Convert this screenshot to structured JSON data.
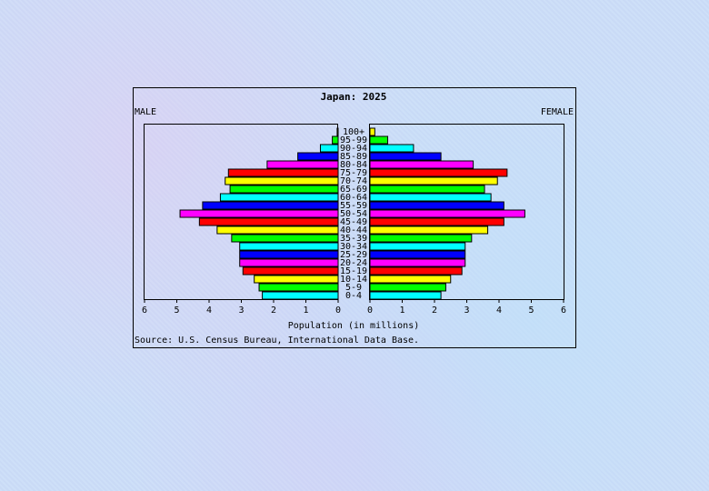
{
  "chart_data": {
    "type": "bar",
    "title": "Japan: 2025",
    "left_label": "MALE",
    "right_label": "FEMALE",
    "xlabel": "Population (in millions)",
    "source": "Source: U.S. Census Bureau, International Data Base.",
    "xlim": [
      0,
      6
    ],
    "tick_labels": [
      "6",
      "5",
      "4",
      "3",
      "2",
      "1",
      "0"
    ],
    "tick_labels_right": [
      "0",
      "1",
      "2",
      "3",
      "4",
      "5",
      "6"
    ],
    "categories": [
      "0-4",
      "5-9",
      "10-14",
      "15-19",
      "20-24",
      "25-29",
      "30-34",
      "35-39",
      "40-44",
      "45-49",
      "50-54",
      "55-59",
      "60-64",
      "65-69",
      "70-74",
      "75-79",
      "80-84",
      "85-89",
      "90-94",
      "95-99",
      "100+"
    ],
    "series": [
      {
        "name": "MALE",
        "values": [
          2.35,
          2.45,
          2.6,
          2.95,
          3.05,
          3.05,
          3.05,
          3.3,
          3.75,
          4.3,
          4.9,
          4.2,
          3.65,
          3.35,
          3.5,
          3.4,
          2.2,
          1.25,
          0.55,
          0.18,
          0.03
        ]
      },
      {
        "name": "FEMALE",
        "values": [
          2.2,
          2.35,
          2.5,
          2.85,
          2.95,
          2.95,
          2.95,
          3.15,
          3.65,
          4.15,
          4.8,
          4.15,
          3.75,
          3.55,
          3.95,
          4.25,
          3.2,
          2.2,
          1.35,
          0.55,
          0.15
        ]
      }
    ],
    "bar_colors": [
      "#00ffff",
      "#00ff00",
      "#ffff00",
      "#ff0000",
      "#ff00ff",
      "#0000ff"
    ],
    "grid": false
  }
}
